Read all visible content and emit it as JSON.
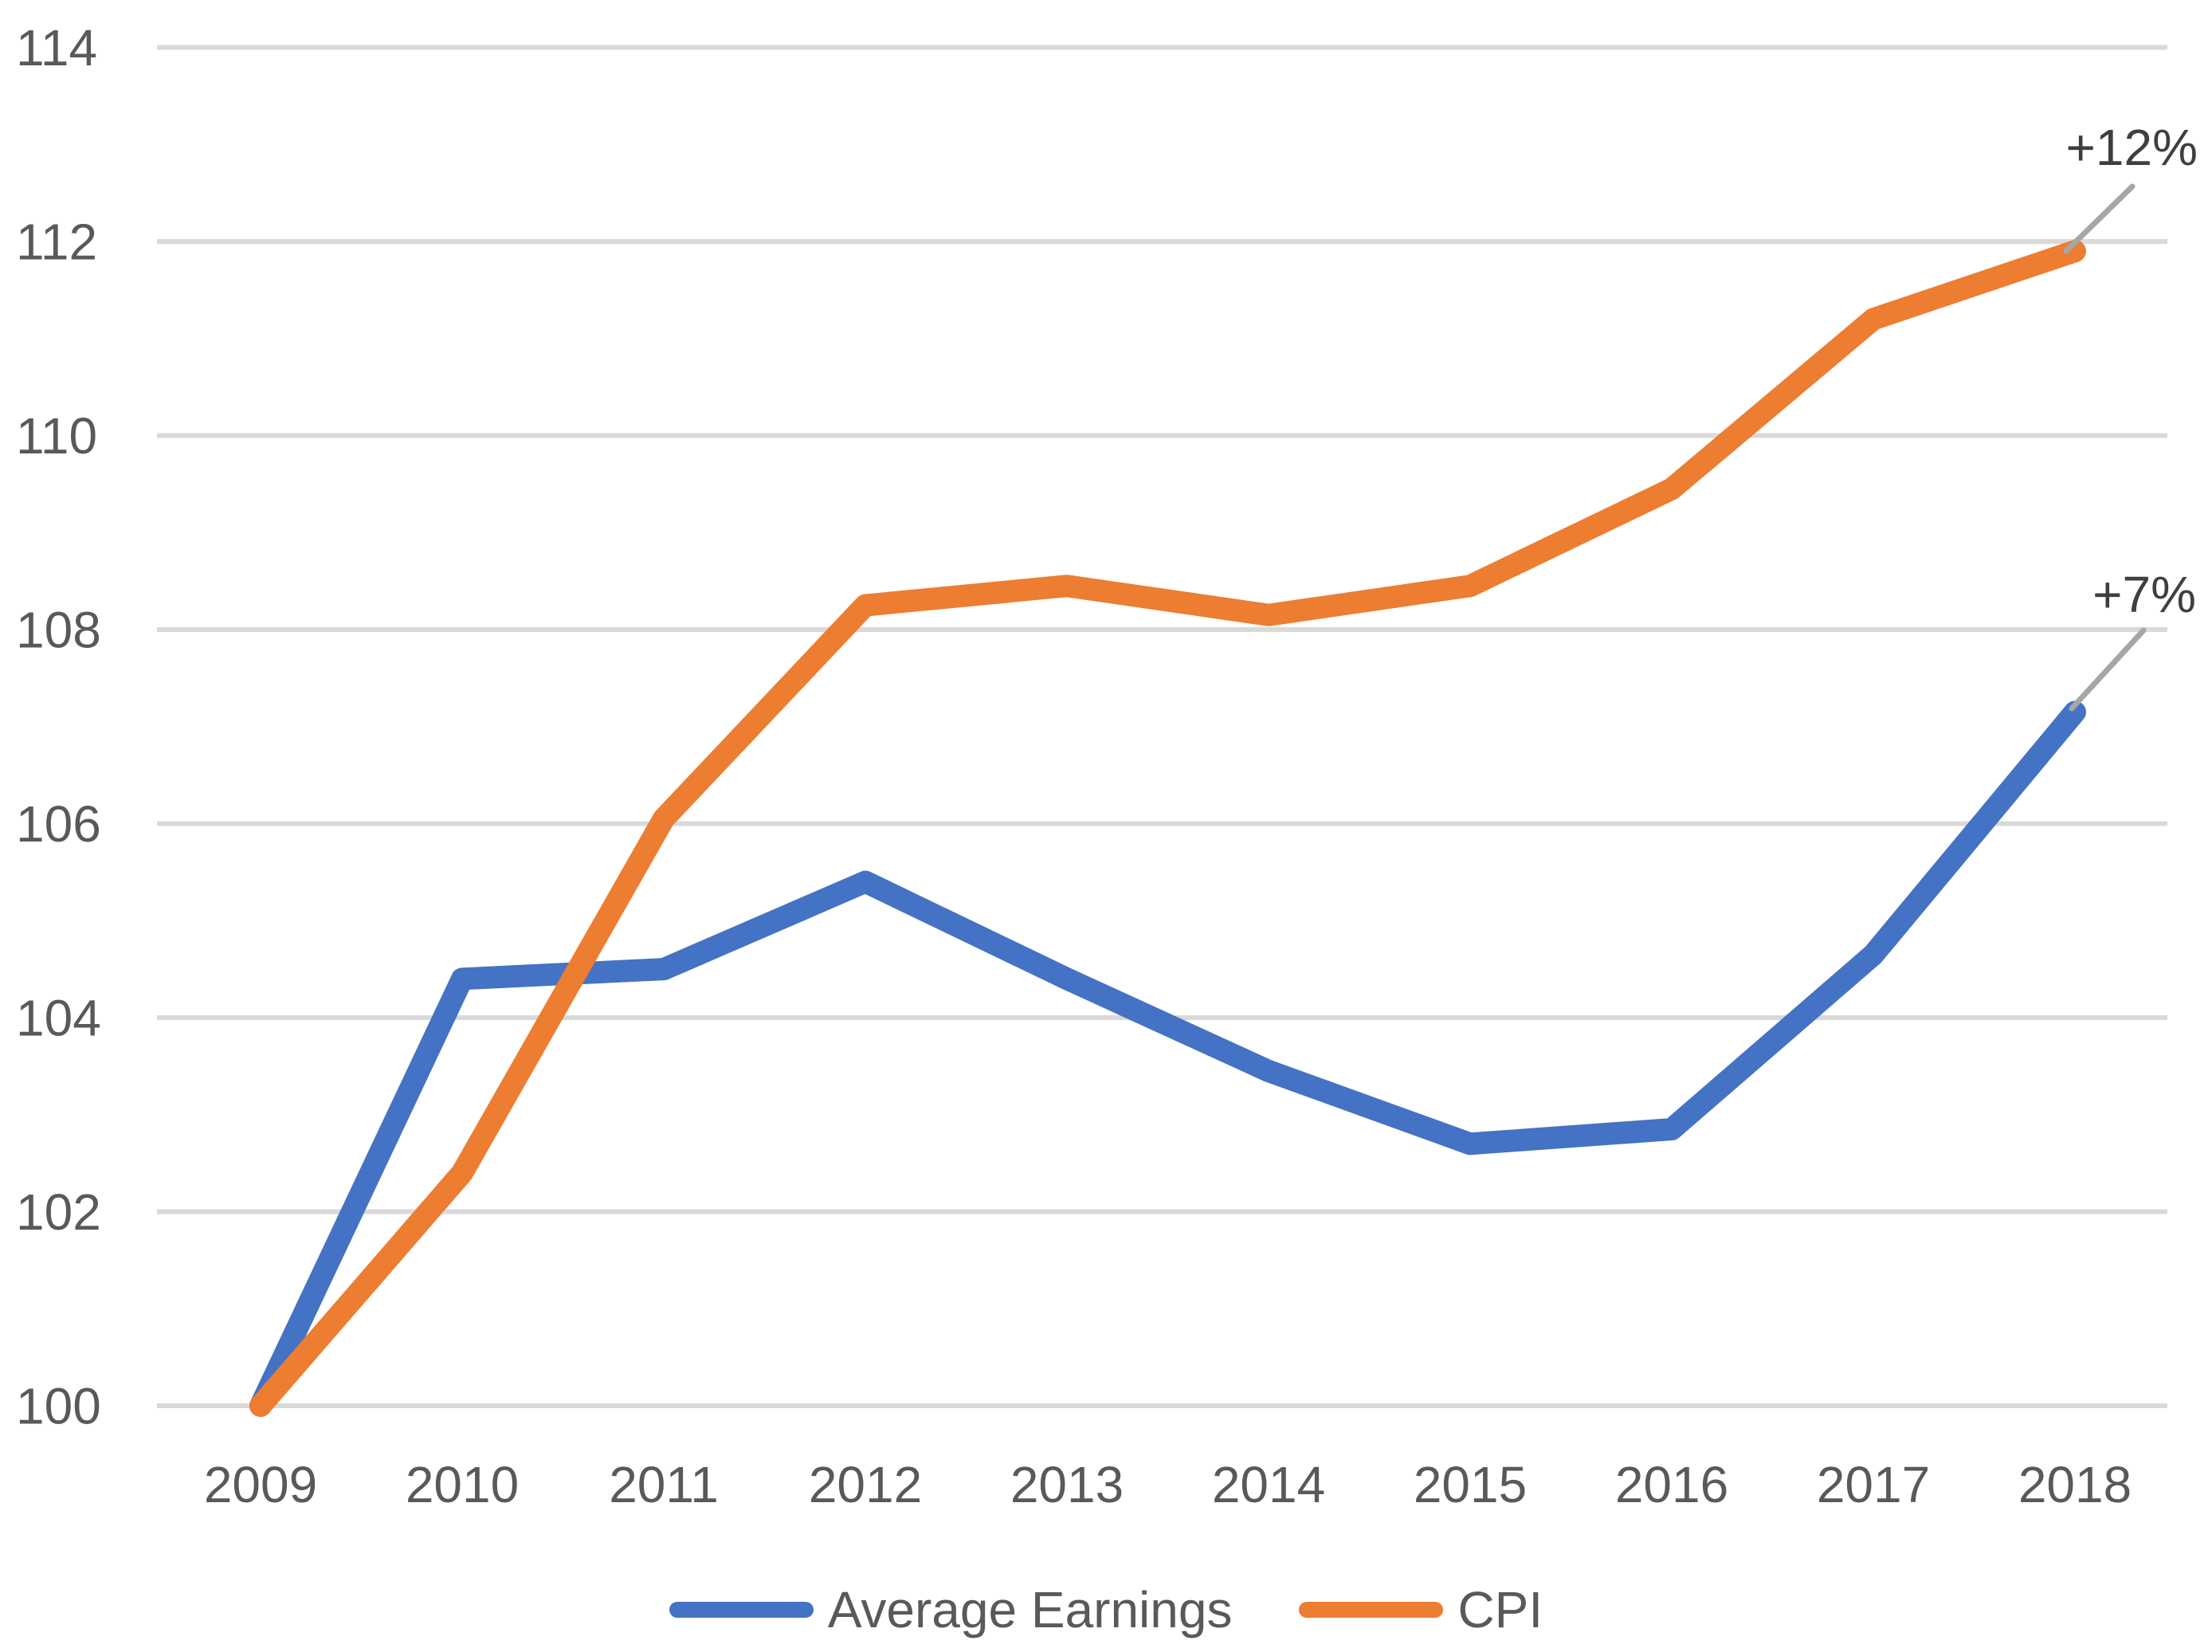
{
  "chart_data": {
    "type": "line",
    "title": "",
    "xlabel": "",
    "ylabel": "",
    "categories": [
      "2009",
      "2010",
      "2011",
      "2012",
      "2013",
      "2014",
      "2015",
      "2016",
      "2017",
      "2018"
    ],
    "series": [
      {
        "name": "Average Earnings",
        "color": "#4472C4",
        "values": [
          100,
          104.4,
          104.5,
          105.4,
          104.4,
          103.45,
          102.7,
          102.85,
          104.65,
          107.15
        ]
      },
      {
        "name": "CPI",
        "color": "#ED7D31",
        "values": [
          100,
          102.4,
          106.05,
          108.25,
          108.45,
          108.15,
          108.45,
          109.45,
          111.2,
          111.9
        ]
      }
    ],
    "ylim": [
      100,
      114
    ],
    "ytick_step": 2,
    "yticks": [
      "100",
      "102",
      "104",
      "106",
      "108",
      "110",
      "112",
      "114"
    ],
    "grid": "horizontal",
    "legend_position": "bottom",
    "annotations": [
      {
        "text": "+12%",
        "series": "CPI"
      },
      {
        "text": "+7%",
        "series": "Average Earnings"
      }
    ]
  },
  "colors": {
    "background": "#FFFFFF",
    "gridline": "#D9D9D9",
    "axis_text": "#595959",
    "annotation_text": "#3F3F3F",
    "leader_line": "#A6A6A6",
    "series_earnings": "#4472C4",
    "series_cpi": "#ED7D31"
  }
}
